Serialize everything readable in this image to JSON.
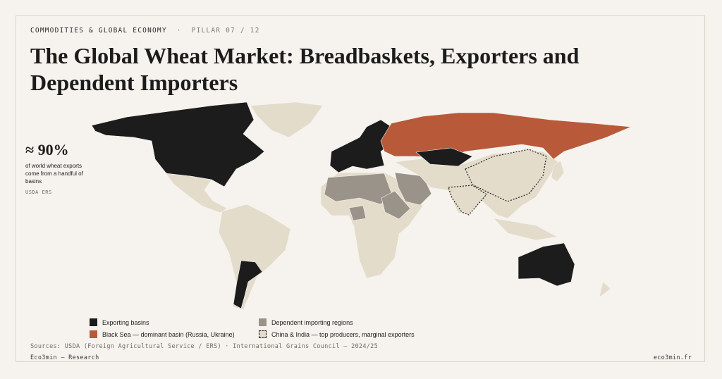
{
  "header": {
    "kicker": "COMMODITIES & GLOBAL ECONOMY",
    "separator": "·",
    "pillar": "PILLAR 07 / 12"
  },
  "title": "The Global Wheat Market: Breadbaskets, Exporters and Dependent Importers",
  "stat": {
    "value": "≈ 90%",
    "text": "of world wheat exports come from a handful of basins",
    "source": "USDA ERS"
  },
  "legend": [
    {
      "label": "Exporting basins"
    },
    {
      "label": "Black Sea — dominant basin (Russia, Ukraine)"
    },
    {
      "label": "Dependent importing regions"
    },
    {
      "label": "China & India — top producers, marginal exporters"
    }
  ],
  "footer": {
    "sources": "Sources: USDA (Foreign Agricultural Service / ERS) · International Grains Council — 2024/25",
    "brand": "Eco3min — Research",
    "url": "eco3min.fr"
  }
}
